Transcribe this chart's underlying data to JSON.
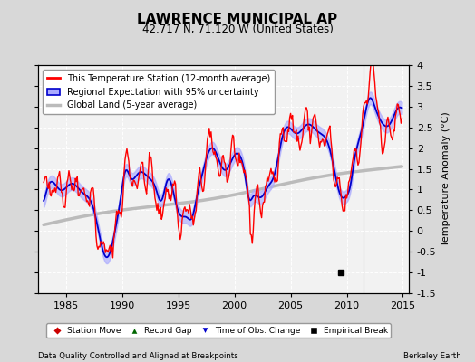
{
  "title": "LAWRENCE MUNICIPAL AP",
  "subtitle": "42.717 N, 71.120 W (United States)",
  "ylabel": "Temperature Anomaly (°C)",
  "xlabel_left": "Data Quality Controlled and Aligned at Breakpoints",
  "xlabel_right": "Berkeley Earth",
  "xlim": [
    1982.5,
    2015.5
  ],
  "ylim": [
    -1.5,
    4.0
  ],
  "yticks": [
    -1.5,
    -1.0,
    -0.5,
    0.0,
    0.5,
    1.0,
    1.5,
    2.0,
    2.5,
    3.0,
    3.5,
    4.0
  ],
  "xticks": [
    1985,
    1990,
    1995,
    2000,
    2005,
    2010,
    2015
  ],
  "bg_color": "#d8d8d8",
  "plot_bg_color": "#f2f2f2",
  "grid_color": "#ffffff",
  "station_color": "#ff0000",
  "regional_color": "#0000cc",
  "regional_fill_color": "#aaaaff",
  "global_land_color": "#bbbbbb",
  "vertical_line_x": 2011.5,
  "empirical_break_x": 2009.5,
  "empirical_break_y": -1.0
}
